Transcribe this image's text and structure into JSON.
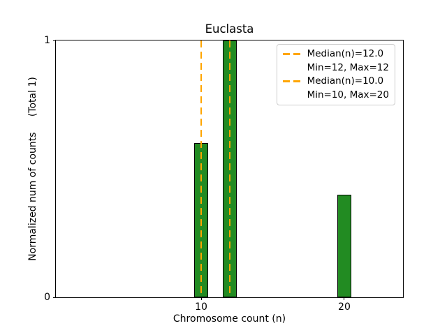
{
  "chart_data": {
    "type": "bar",
    "title": "Euclasta",
    "xlabel": "Chromosome count (n)",
    "ylabel": "Normalized num of counts     (Total 1)",
    "x": [
      10,
      12,
      20
    ],
    "values": [
      0.6,
      1.0,
      0.4
    ],
    "bar_width": 1,
    "xlim": [
      -0.15,
      24.1
    ],
    "ylim": [
      0,
      1
    ],
    "xticks": [
      10,
      20
    ],
    "yticks": [
      0,
      1
    ],
    "grid": false,
    "legend_position": "upper right",
    "median_lines": [
      {
        "x": 12.0,
        "style": "dashed",
        "color": "#FFA500"
      },
      {
        "x": 10.0,
        "style": "dashed",
        "color": "#FFA500"
      }
    ],
    "legend": [
      {
        "swatch": "dashed-line",
        "label": "Median(n)=12.0"
      },
      {
        "swatch": "none",
        "label": "Min=12, Max=12"
      },
      {
        "swatch": "dashed-line",
        "label": "Median(n)=10.0"
      },
      {
        "swatch": "none",
        "label": "Min=10, Max=20"
      }
    ],
    "colors": {
      "bar_fill": "#228B22",
      "bar_edge": "#000000",
      "median_line": "#FFA500",
      "axis": "#000000",
      "legend_border": "#CCCCCC",
      "legend_background": "#FFFFFF"
    }
  }
}
